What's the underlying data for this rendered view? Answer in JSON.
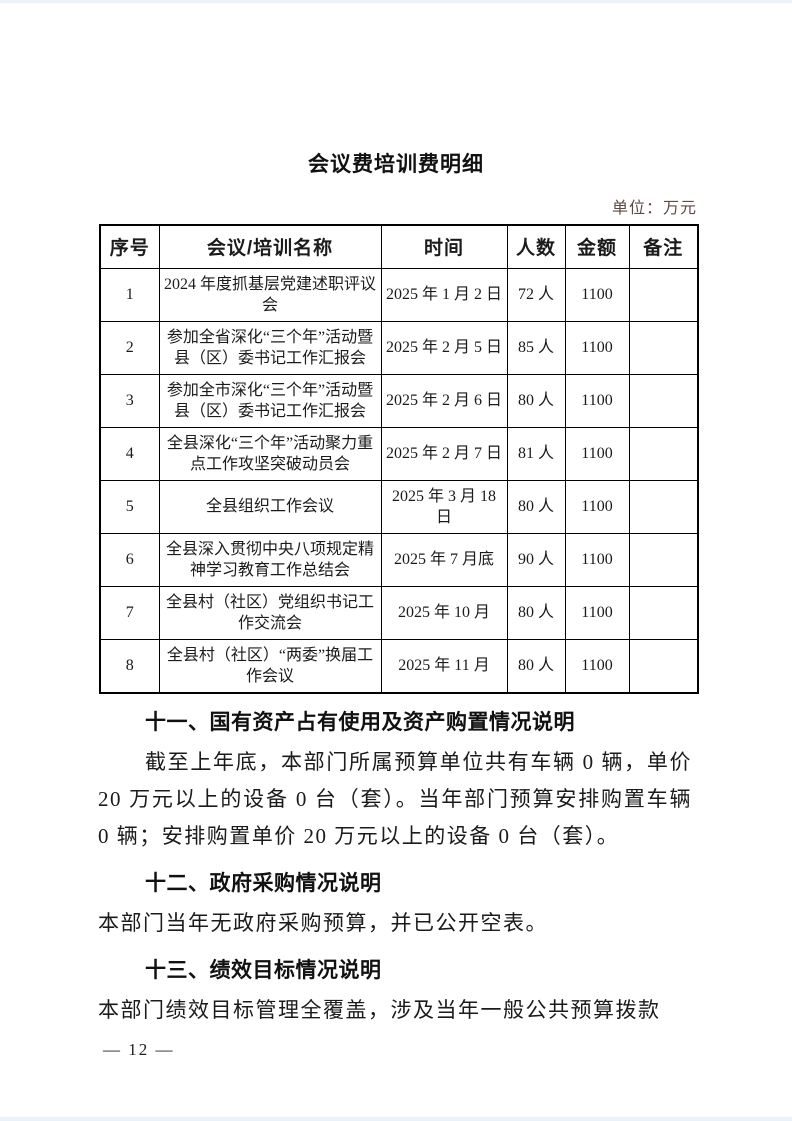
{
  "page": {
    "title": "会议费培训费明细",
    "unit_note": "单位：万元",
    "unit_note_color": "#5d4a42",
    "page_number": "— 12 —"
  },
  "table": {
    "headers": [
      "序号",
      "会议/培训名称",
      "时间",
      "人数",
      "金额",
      "备注"
    ],
    "rows": [
      {
        "no": "1",
        "name": "2024 年度抓基层党建述职评议会",
        "time": "2025 年 1 月 2 日",
        "people": "72 人",
        "amount": "1100",
        "note": ""
      },
      {
        "no": "2",
        "name": "参加全省深化“三个年”活动暨县（区）委书记工作汇报会",
        "time": "2025 年 2 月 5 日",
        "people": "85 人",
        "amount": "1100",
        "note": ""
      },
      {
        "no": "3",
        "name": "参加全市深化“三个年”活动暨县（区）委书记工作汇报会",
        "time": "2025 年 2 月 6 日",
        "people": "80 人",
        "amount": "1100",
        "note": ""
      },
      {
        "no": "4",
        "name": "全县深化“三个年”活动聚力重点工作攻坚突破动员会",
        "time": "2025 年 2 月 7 日",
        "people": "81 人",
        "amount": "1100",
        "note": ""
      },
      {
        "no": "5",
        "name": "全县组织工作会议",
        "time": "2025 年 3 月 18 日",
        "people": "80 人",
        "amount": "1100",
        "note": ""
      },
      {
        "no": "6",
        "name": "全县深入贯彻中央八项规定精神学习教育工作总结会",
        "time": "2025 年 7 月底",
        "people": "90 人",
        "amount": "1100",
        "note": ""
      },
      {
        "no": "7",
        "name": "全县村（社区）党组织书记工作交流会",
        "time": "2025 年 10 月",
        "people": "80 人",
        "amount": "1100",
        "note": ""
      },
      {
        "no": "8",
        "name": "全县村（社区）“两委”换届工作会议",
        "time": "2025 年 11 月",
        "people": "80 人",
        "amount": "1100",
        "note": ""
      }
    ]
  },
  "sections": [
    {
      "heading": "十一、国有资产占有使用及资产购置情况说明",
      "paragraph": "截至上年底，本部门所属预算单位共有车辆 0 辆，单价 20 万元以上的设备 0 台（套）。当年部门预算安排购置车辆 0 辆；安排购置单价 20 万元以上的设备 0 台（套）。"
    },
    {
      "heading": "十二、政府采购情况说明",
      "paragraph": "本部门当年无政府采购预算，并已公开空表。"
    },
    {
      "heading": "十三、绩效目标情况说明",
      "paragraph": "本部门绩效目标管理全覆盖，涉及当年一般公共预算拨款"
    }
  ]
}
